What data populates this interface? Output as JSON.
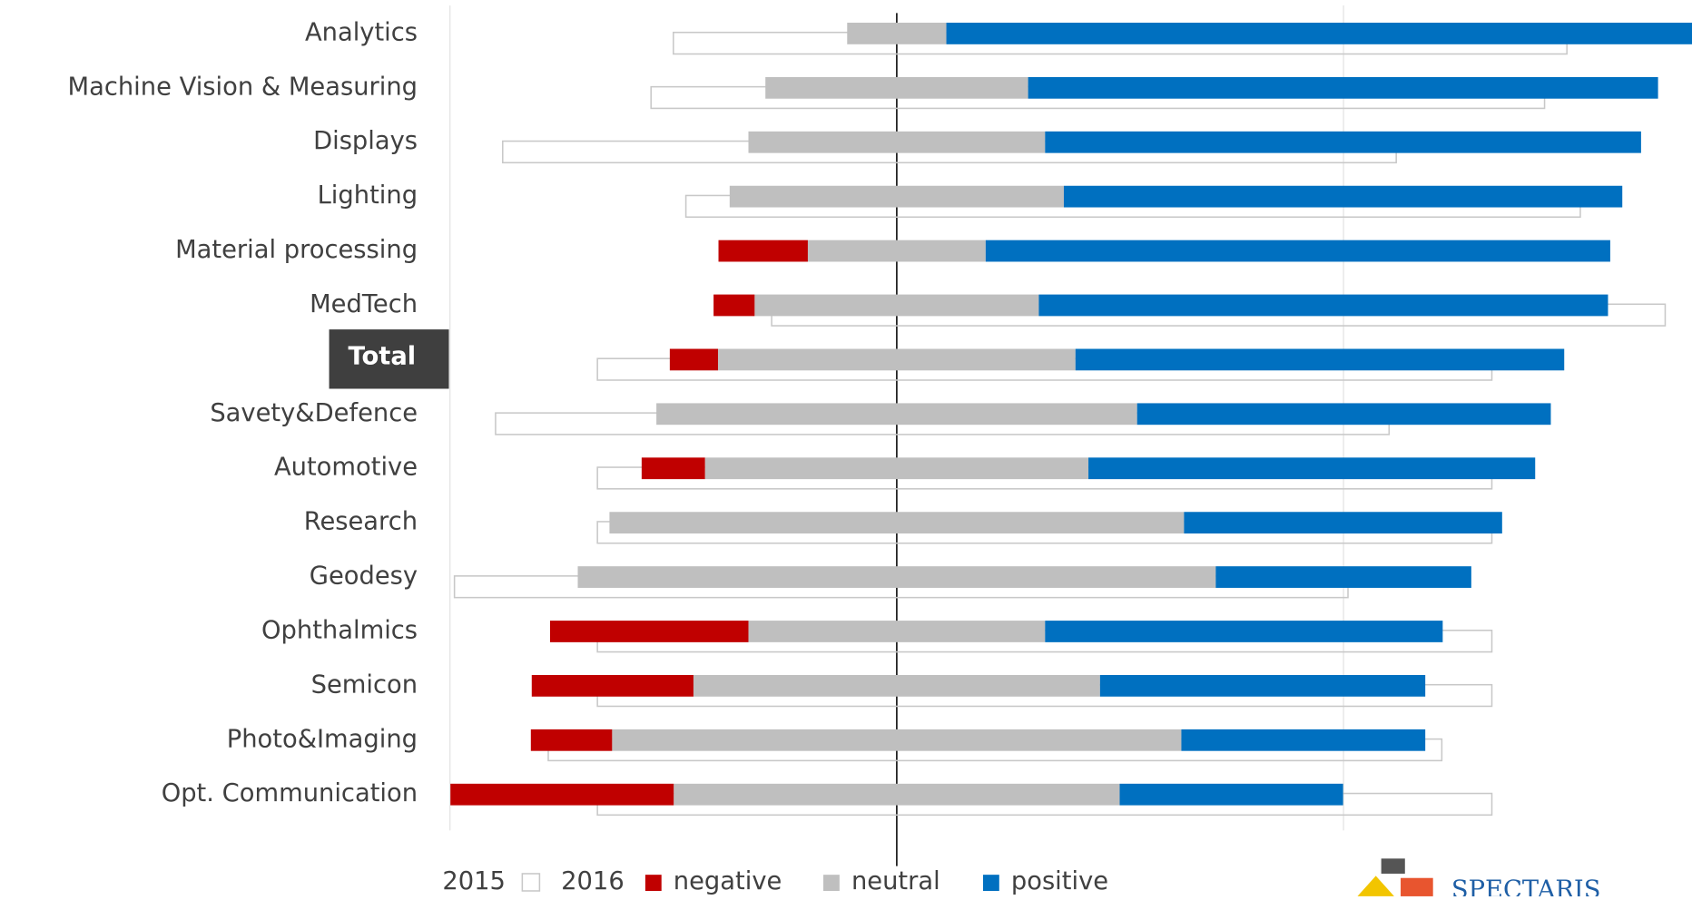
{
  "chart_data": {
    "type": "diverging-bar",
    "categories": [
      "Analytics",
      "Machine Vision & Measuring",
      "Displays",
      "Lighting",
      "Material processing",
      "MedTech",
      "Total",
      "Savety&Defence",
      "Automotive",
      "Research",
      "Geodesy",
      "Ophthalmics",
      "Semicon",
      "Photo&Imaging",
      "Opt. Communication"
    ],
    "highlight_index": 6,
    "series": [
      {
        "name": "negative",
        "color": "#c00000",
        "values": [
          0,
          0,
          0,
          0,
          10.0,
          4.6,
          5.4,
          0,
          7.1,
          0,
          0,
          22.2,
          18.1,
          9.1,
          25.0
        ]
      },
      {
        "name": "neutral",
        "color": "#bfbfbf",
        "values": [
          11.1,
          29.4,
          33.2,
          37.4,
          19.9,
          31.8,
          40.0,
          53.8,
          42.9,
          64.3,
          71.4,
          33.2,
          45.5,
          63.7,
          49.9
        ]
      },
      {
        "name": "positive",
        "color": "#0070c0",
        "values": [
          85.0,
          70.5,
          66.7,
          62.5,
          69.9,
          63.7,
          54.7,
          46.3,
          50.0,
          35.6,
          28.6,
          44.5,
          36.4,
          27.3,
          25.0
        ]
      }
    ],
    "outline": {
      "name": "2015",
      "color": "#c8c8c8",
      "ranges": [
        [
          -25.0,
          75.0
        ],
        [
          -27.5,
          72.5
        ],
        [
          -44.1,
          55.9
        ],
        [
          -23.6,
          76.5
        ],
        null,
        [
          -14.0,
          86.0
        ],
        [
          -33.5,
          66.6
        ],
        [
          -44.9,
          55.1
        ],
        [
          -33.5,
          66.6
        ],
        [
          -33.5,
          66.6
        ],
        [
          -49.5,
          50.5
        ],
        [
          -33.5,
          66.6
        ],
        [
          -33.5,
          66.6
        ],
        [
          -39.0,
          61.0
        ],
        [
          -33.5,
          66.6
        ]
      ]
    },
    "legend_prefix": "2016",
    "xlim": [
      -50,
      89
    ],
    "xticks": [
      -50,
      0,
      50
    ],
    "grid": true,
    "zero_line": true,
    "logo": "SPECTARIS"
  }
}
